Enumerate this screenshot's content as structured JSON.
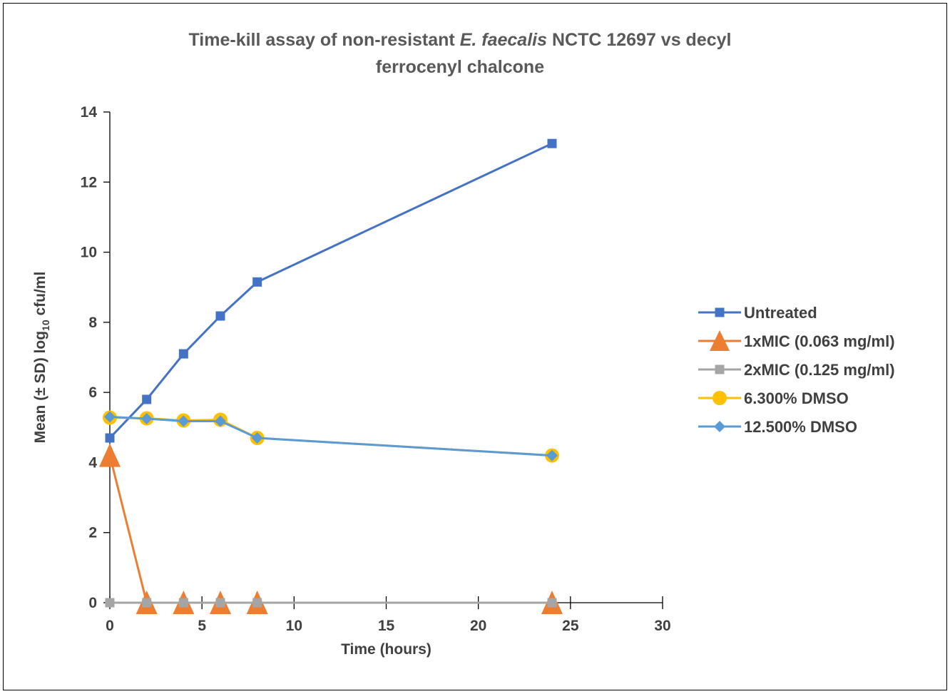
{
  "chart_data": {
    "type": "line",
    "title": {
      "line1_prefix": "Time-kill assay of non-resistant ",
      "line1_italic": "E. faecalis",
      "line1_suffix": " NCTC 12697 vs decyl",
      "line2": "ferrocenyl chalcone"
    },
    "xlabel": "Time (hours)",
    "ylabel": {
      "prefix": "Mean (± SD) log",
      "subscript": "10",
      "suffix": " cfu/ml"
    },
    "xlim": [
      0,
      30
    ],
    "ylim": [
      0,
      14
    ],
    "x_ticks": [
      0,
      5,
      10,
      15,
      20,
      25,
      30
    ],
    "y_ticks": [
      0,
      2,
      4,
      6,
      8,
      10,
      12,
      14
    ],
    "grid": false,
    "legend_position": "right",
    "x": [
      0,
      2,
      4,
      6,
      8,
      24
    ],
    "series": [
      {
        "name": "Untreated",
        "color": "#4472C4",
        "marker": "square",
        "values": [
          4.7,
          5.8,
          7.1,
          8.18,
          9.15,
          13.1
        ]
      },
      {
        "name": "1xMIC (0.063 mg/ml)",
        "color": "#ED7D31",
        "marker": "triangle",
        "values": [
          4.2,
          0,
          0,
          0,
          0,
          0
        ]
      },
      {
        "name": "2xMIC (0.125 mg/ml)",
        "color": "#A5A5A5",
        "marker": "square",
        "values": [
          0,
          0,
          0,
          0,
          0,
          0
        ]
      },
      {
        "name": "6.300% DMSO",
        "color": "#FFC000",
        "marker": "circle",
        "values": [
          5.28,
          5.26,
          5.2,
          5.22,
          4.7,
          4.2
        ]
      },
      {
        "name": "12.500% DMSO",
        "color": "#5B9BD5",
        "marker": "diamond",
        "values": [
          5.3,
          5.25,
          5.18,
          5.18,
          4.7,
          4.2
        ]
      }
    ]
  }
}
